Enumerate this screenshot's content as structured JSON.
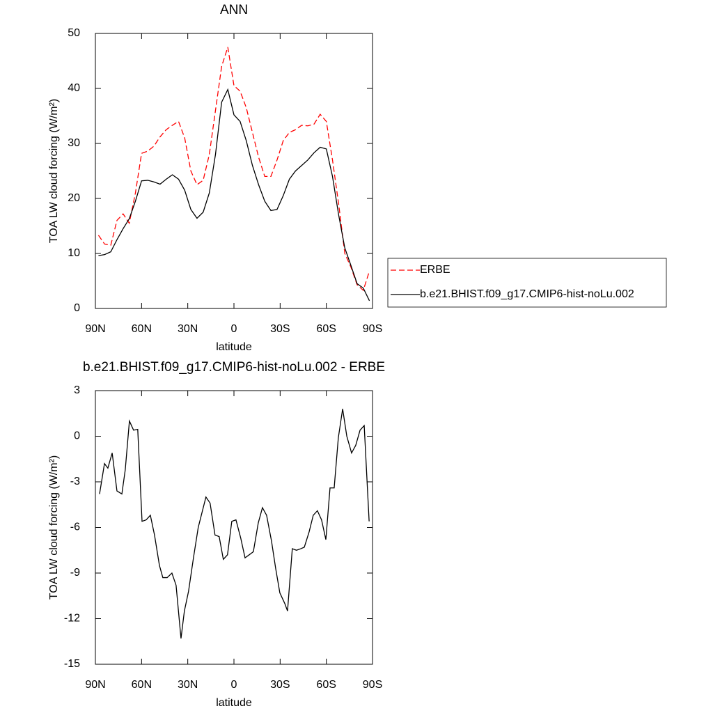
{
  "chart_data": [
    {
      "type": "line",
      "title": "ANN",
      "xlabel": "latitude",
      "ylabel": "TOA LW cloud forcing (W/m²)",
      "x": [
        88,
        84,
        80,
        76,
        72,
        68,
        64,
        60,
        56,
        52,
        48,
        44,
        40,
        36,
        32,
        28,
        24,
        20,
        16,
        12,
        8,
        4,
        0,
        -4,
        -8,
        -12,
        -16,
        -20,
        -24,
        -28,
        -32,
        -36,
        -40,
        -44,
        -48,
        -52,
        -56,
        -60,
        -64,
        -68,
        -72,
        -76,
        -80,
        -84,
        -88
      ],
      "series": [
        {
          "name": "ERBE",
          "color": "#ff0000",
          "line_style": "dashed",
          "values": [
            13.3,
            11.7,
            11.5,
            16,
            17.2,
            15.5,
            21,
            28.2,
            28.6,
            29.5,
            31.2,
            32.5,
            33.3,
            34.0,
            31,
            25,
            22.5,
            23.3,
            28,
            36,
            44,
            47.5,
            40.5,
            39.5,
            36.5,
            32,
            27.5,
            24,
            24,
            27,
            30.5,
            32,
            32.5,
            33.3,
            33.2,
            33.5,
            35.3,
            34,
            27,
            19,
            10,
            7.5,
            4.3,
            3.3,
            6.8
          ]
        },
        {
          "name": "b.e21.BHIST.f09_g17.CMIP6-hist-noLu.002",
          "color": "#000000",
          "line_style": "solid",
          "values": [
            9.6,
            9.8,
            10.3,
            12.5,
            14.5,
            16.3,
            19.5,
            23.2,
            23.3,
            23.0,
            22.6,
            23.5,
            24.3,
            23.5,
            21.5,
            18,
            16.4,
            17.5,
            21,
            28,
            37.5,
            39.8,
            35.2,
            34,
            30.5,
            26,
            22.5,
            19.5,
            17.8,
            18,
            20.5,
            23.5,
            25,
            26,
            27,
            28.3,
            29.3,
            29,
            24,
            17,
            11,
            7.8,
            4.5,
            3.7,
            1.4
          ]
        }
      ],
      "xlim": [
        90,
        -90
      ],
      "xticks": [
        {
          "value": 90,
          "label": "90N"
        },
        {
          "value": 60,
          "label": "60N"
        },
        {
          "value": 30,
          "label": "30N"
        },
        0,
        {
          "value": -30,
          "label": "30S"
        },
        {
          "value": -60,
          "label": "60S"
        },
        {
          "value": -90,
          "label": "90S"
        }
      ],
      "ylim": [
        0,
        50
      ],
      "yticks": [
        0,
        10,
        20,
        30,
        40,
        50
      ],
      "legend": "right"
    },
    {
      "type": "line",
      "title": "b.e21.BHIST.f09_g17.CMIP6-hist-noLu.002 - ERBE",
      "xlabel": "latitude",
      "ylabel": "TOA LW cloud forcing (W/m²)",
      "x": [
        87.3,
        84.1,
        81.9,
        79.1,
        76.0,
        72.8,
        70.6,
        67.9,
        65.2,
        62.5,
        59.7,
        57.0,
        54.3,
        51.6,
        48.4,
        46.2,
        43.4,
        40.3,
        37.6,
        34.4,
        32.2,
        29.5,
        26.3,
        23.2,
        18.2,
        15.5,
        12.3,
        9.6,
        6.9,
        4.2,
        1.4,
        -1.3,
        -4.4,
        -7.2,
        -9.9,
        -12.6,
        -15.8,
        -18.5,
        -21.2,
        -24.4,
        -27.1,
        -29.8,
        -33.0,
        -34.8,
        -37.9,
        -40.6,
        -43.4,
        -45.7,
        -48.8,
        -51.5,
        -54.2,
        -56.9,
        -59.7,
        -62.4,
        -65.1,
        -67.8,
        -70.6,
        -73.3,
        -76.4,
        -79.1,
        -81.9,
        -84.6,
        -87.8
      ],
      "series": [
        {
          "color": "#000000",
          "line_style": "solid",
          "values": [
            -3.8,
            -1.8,
            -2.1,
            -1.1,
            -3.6,
            -3.8,
            -2.2,
            1.0,
            0.4,
            0.45,
            -5.6,
            -5.5,
            -5.2,
            -6.5,
            -8.5,
            -9.3,
            -9.3,
            -9.0,
            -9.8,
            -13.3,
            -11.5,
            -10.2,
            -8.0,
            -6.0,
            -4.0,
            -4.4,
            -6.5,
            -6.6,
            -8.1,
            -7.8,
            -5.6,
            -5.5,
            -6.7,
            -8.0,
            -7.8,
            -7.6,
            -5.7,
            -4.7,
            -5.2,
            -6.9,
            -8.7,
            -10.3,
            -11.0,
            -11.5,
            -7.4,
            -7.5,
            -7.4,
            -7.3,
            -6.3,
            -5.2,
            -4.9,
            -5.5,
            -6.8,
            -3.4,
            -3.4,
            -0.1,
            1.8,
            0.0,
            -1.1,
            -0.6,
            0.4,
            0.7,
            -5.6
          ]
        }
      ],
      "xlim": [
        90,
        -90
      ],
      "xticks": [
        {
          "value": 90,
          "label": "90N"
        },
        {
          "value": 60,
          "label": "60N"
        },
        {
          "value": 30,
          "label": "30N"
        },
        0,
        {
          "value": -30,
          "label": "30S"
        },
        {
          "value": -60,
          "label": "60S"
        },
        {
          "value": -90,
          "label": "90S"
        }
      ],
      "ylim": [
        -15,
        3
      ],
      "yticks": [
        -15,
        -12,
        -9,
        -6,
        -3,
        0,
        3
      ]
    }
  ]
}
